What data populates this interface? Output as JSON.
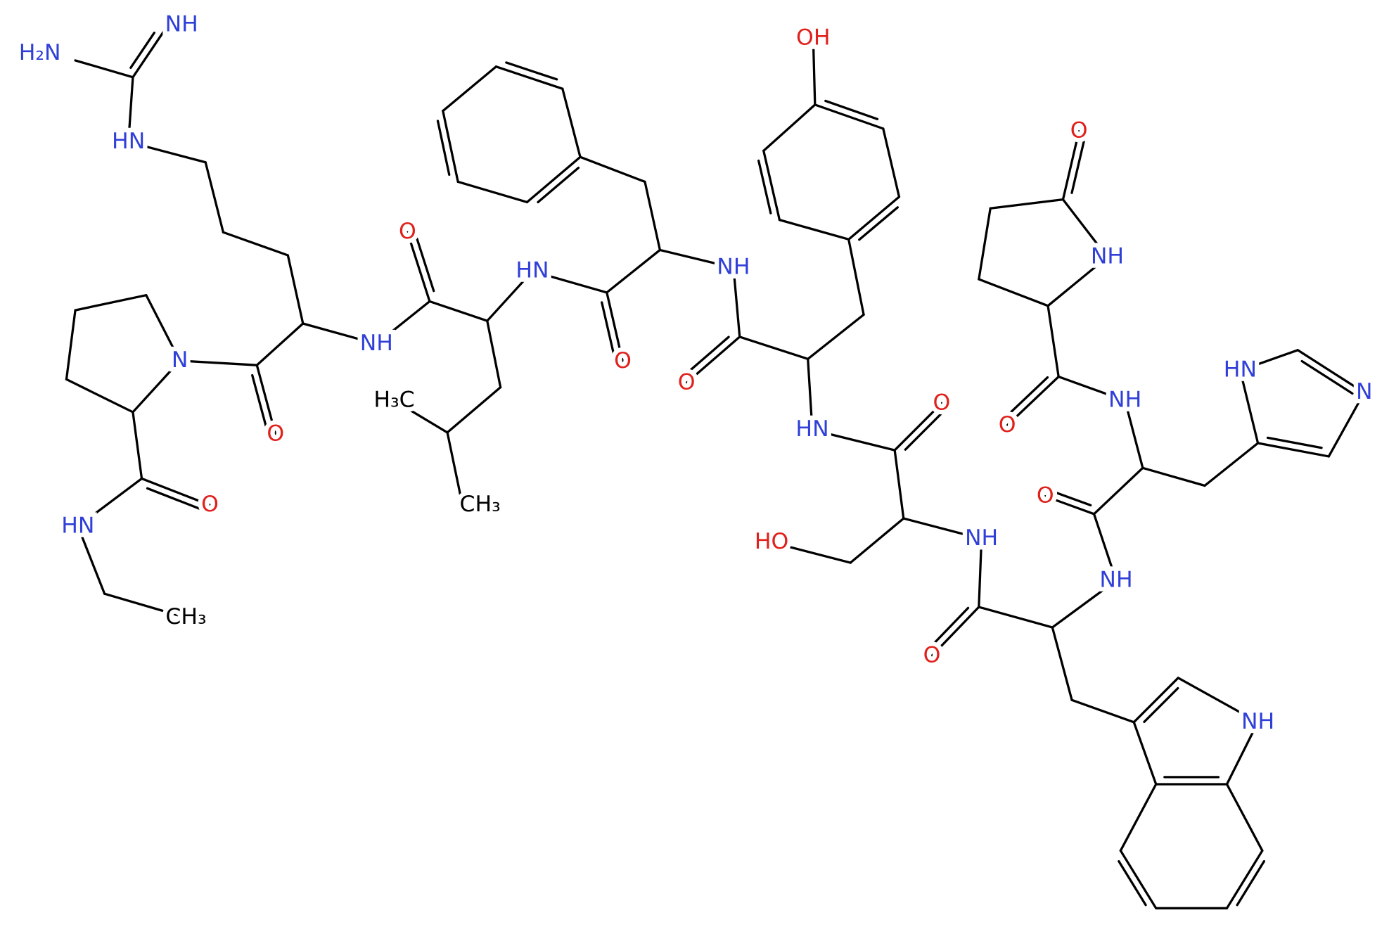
{
  "labels": [
    "NH",
    "H₂N",
    "HN",
    "N",
    "NH",
    "O",
    "O",
    "O",
    "HN",
    "CH₃",
    "H₃C",
    "CH₃",
    "HN",
    "O",
    "NH",
    "O",
    "OH",
    "HN",
    "O",
    "HO",
    "NH",
    "O",
    "NH",
    "O",
    "NH",
    "O",
    "NH",
    "O",
    "HN",
    "N",
    "NH"
  ]
}
